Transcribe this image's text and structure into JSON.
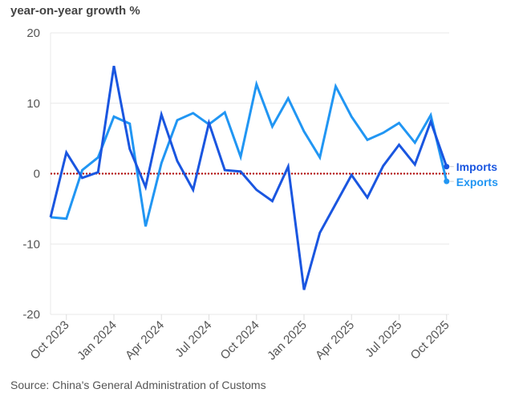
{
  "chart_data": {
    "type": "line",
    "ylabel": "year-on-year growth %",
    "source": "Source: China's General Administration of Customs",
    "ylim": [
      -20,
      20
    ],
    "yticks": [
      "20",
      "10",
      "0",
      "-10",
      "-20"
    ],
    "ytick_values": [
      20,
      10,
      0,
      -10,
      -20
    ],
    "grid": "horizontal",
    "reference_line": {
      "value": 0,
      "color": "#b00000",
      "style": "dotted"
    },
    "legend": "right-end labels",
    "x": [
      "Sep 2023",
      "Oct 2023",
      "Nov 2023",
      "Dec 2023",
      "Jan 2024",
      "Feb 2024",
      "Mar 2024",
      "Apr 2024",
      "May 2024",
      "Jun 2024",
      "Jul 2024",
      "Aug 2024",
      "Sep 2024",
      "Oct 2024",
      "Nov 2024",
      "Dec 2024",
      "Jan 2025",
      "Feb 2025",
      "Mar 2025",
      "Apr 2025",
      "May 2025",
      "Jun 2025",
      "Jul 2025",
      "Aug 2025",
      "Sep 2025",
      "Oct 2025"
    ],
    "xticks": [
      "Oct 2023",
      "Jan 2024",
      "Apr 2024",
      "Jul 2024",
      "Oct 2024",
      "Jan 2025",
      "Apr 2025",
      "Jul 2025",
      "Oct 2025"
    ],
    "series": [
      {
        "name": "Imports",
        "color": "#1a56e0",
        "values": [
          -6.2,
          3.0,
          -0.6,
          0.2,
          15.3,
          3.5,
          -1.9,
          8.4,
          1.8,
          -2.3,
          7.2,
          0.5,
          0.3,
          -2.3,
          -3.9,
          1.0,
          -16.5,
          -8.4,
          -4.3,
          -0.2,
          -3.4,
          1.1,
          4.1,
          1.3,
          7.4,
          1.0
        ]
      },
      {
        "name": "Exports",
        "color": "#2196f3",
        "values": [
          -6.2,
          -6.4,
          0.5,
          2.3,
          8.1,
          7.1,
          -7.5,
          1.5,
          7.6,
          8.6,
          7.0,
          8.7,
          2.4,
          12.7,
          6.7,
          10.7,
          6.0,
          2.3,
          12.4,
          8.1,
          4.8,
          5.8,
          7.2,
          4.4,
          8.3,
          -1.1
        ]
      }
    ]
  }
}
